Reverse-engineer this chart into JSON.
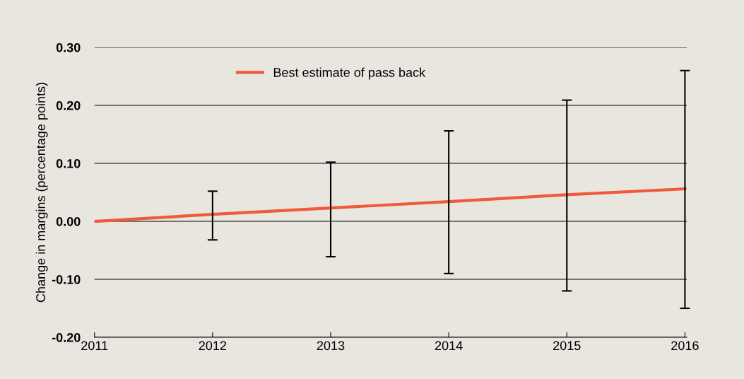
{
  "chart_data": {
    "type": "line",
    "ylabel": "Change in margins (percentage points)",
    "categories": [
      "2011",
      "2012",
      "2013",
      "2014",
      "2015",
      "2016"
    ],
    "series": [
      {
        "name": "Best estimate of pass back",
        "color": "#f05a3c",
        "values": [
          0.0,
          0.012,
          0.023,
          0.034,
          0.046,
          0.056
        ],
        "errors": [
          null,
          [
            -0.032,
            0.052
          ],
          [
            -0.061,
            0.102
          ],
          [
            -0.09,
            0.156
          ],
          [
            -0.12,
            0.209
          ],
          [
            -0.15,
            0.26
          ]
        ]
      }
    ],
    "ylim": [
      -0.2,
      0.3
    ],
    "yticks": [
      {
        "value": -0.2,
        "label": "-0.20"
      },
      {
        "value": -0.1,
        "label": "-0.10"
      },
      {
        "value": 0.0,
        "label": "0.00"
      },
      {
        "value": 0.1,
        "label": "0.10"
      },
      {
        "value": 0.2,
        "label": "0.20"
      },
      {
        "value": 0.3,
        "label": "0.30"
      }
    ],
    "grid": "y",
    "legend": "top",
    "marker": "none",
    "line_style": "solid"
  }
}
